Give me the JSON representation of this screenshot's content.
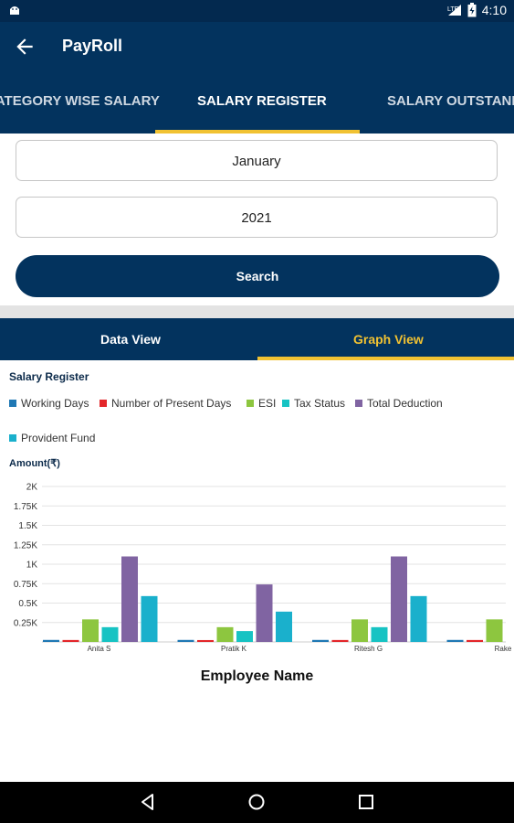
{
  "status_bar": {
    "time": "4:10",
    "icons": [
      "android-icon",
      "signal-icon",
      "battery-icon"
    ]
  },
  "app_bar": {
    "title": "PayRoll",
    "back_icon": "arrow-back-icon"
  },
  "tabs": [
    {
      "label": "CATEGORY WISE SALARY",
      "active": false
    },
    {
      "label": "SALARY REGISTER",
      "active": true
    },
    {
      "label": "SALARY OUTSTANDING",
      "active": false
    }
  ],
  "filters": {
    "month": "January",
    "year": "2021",
    "search_label": "Search"
  },
  "view_tabs": {
    "data_view": "Data View",
    "graph_view": "Graph View",
    "active": "Graph View"
  },
  "colors": {
    "primary": "#03335e",
    "accent": "#f1c232",
    "working_days": "#1f78b4",
    "present_days": "#e3262a",
    "esi": "#8dc63f",
    "tax_status": "#17c3c3",
    "total_deduction": "#8064a2",
    "provident_fund": "#1ab0cc"
  },
  "chart_data": {
    "type": "bar",
    "title": "Salary Register",
    "ylabel": "Amount(₹)",
    "xlabel": "Employee Name",
    "ylim": [
      0,
      2000
    ],
    "yticks": [
      "0.25K",
      "0.5K",
      "0.75K",
      "1K",
      "1.25K",
      "1.5K",
      "1.75K",
      "2K"
    ],
    "ytick_values": [
      250,
      500,
      750,
      1000,
      1250,
      1500,
      1750,
      2000
    ],
    "categories": [
      "Anita S",
      "Pratik K",
      "Ritesh G",
      "Rake"
    ],
    "grid": true,
    "legend_position": "top-left",
    "series": [
      {
        "name": "Working Days",
        "color_key": "working_days",
        "values": [
          26,
          26,
          26,
          26
        ]
      },
      {
        "name": "Number of Present Days",
        "color_key": "present_days",
        "values": [
          25,
          24,
          25,
          25
        ]
      },
      {
        "name": "ESI",
        "color_key": "esi",
        "values": [
          290,
          190,
          290,
          290
        ]
      },
      {
        "name": "Tax Status",
        "color_key": "tax_status",
        "values": [
          190,
          140,
          190,
          0
        ]
      },
      {
        "name": "Total Deduction",
        "color_key": "total_deduction",
        "values": [
          1100,
          740,
          1100,
          0
        ]
      },
      {
        "name": "Provident Fund",
        "color_key": "provident_fund",
        "values": [
          590,
          390,
          590,
          0
        ]
      }
    ]
  },
  "nav_bar": {
    "icons": [
      "back-triangle-icon",
      "home-circle-icon",
      "recents-square-icon"
    ]
  }
}
